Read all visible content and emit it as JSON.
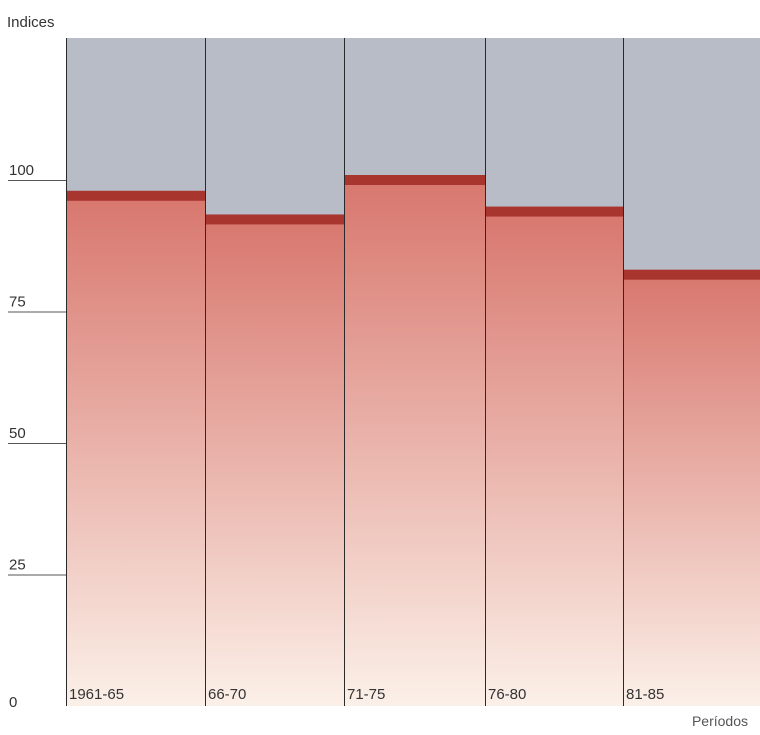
{
  "chart_data": {
    "type": "bar",
    "ylabel": "Indices",
    "xlabel": "Períodos",
    "categories": [
      "1961-65",
      "66-70",
      "71-75",
      "76-80",
      "81-85"
    ],
    "values": [
      97,
      92.5,
      100,
      94,
      82
    ],
    "yticks": [
      0,
      25,
      50,
      75,
      100
    ],
    "ylim": [
      0,
      127
    ],
    "colors": {
      "background_fill": "#b8bcc6",
      "bar_top": "#d8776e",
      "bar_bottom": "#fbf0e8",
      "bar_cap": "#a9352f",
      "divider": "#2a2a2a",
      "tick_line": "#555555"
    }
  }
}
